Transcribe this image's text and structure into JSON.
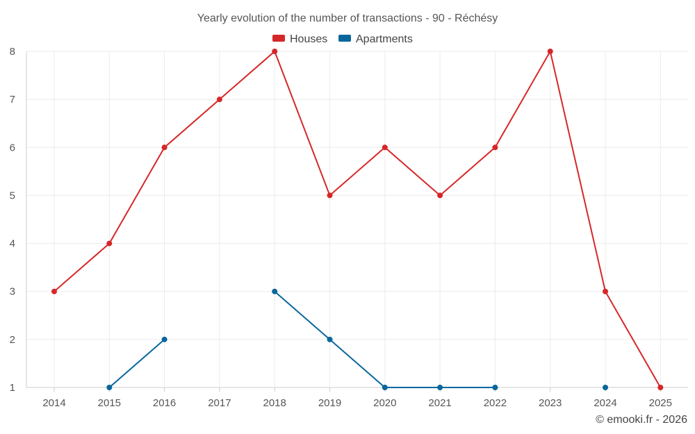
{
  "chart_data": {
    "type": "line",
    "title": "Yearly evolution of the number of transactions - 90 - Réchésy",
    "xlabel": "",
    "ylabel": "",
    "categories": [
      "2014",
      "2015",
      "2016",
      "2017",
      "2018",
      "2019",
      "2020",
      "2021",
      "2022",
      "2023",
      "2024",
      "2025"
    ],
    "ylim": [
      1,
      8
    ],
    "yticks": [
      "1",
      "2",
      "3",
      "4",
      "5",
      "6",
      "7",
      "8"
    ],
    "grid": true,
    "legend_position": "top-center",
    "series": [
      {
        "name": "Houses",
        "color": "#d62728",
        "values": [
          3,
          4,
          6,
          7,
          8,
          5,
          6,
          5,
          6,
          8,
          3,
          1
        ]
      },
      {
        "name": "Apartments",
        "color": "#08669c",
        "values": [
          null,
          1,
          2,
          null,
          3,
          2,
          1,
          1,
          1,
          null,
          1,
          null
        ]
      }
    ]
  },
  "credit": "© emooki.fr - 2026"
}
